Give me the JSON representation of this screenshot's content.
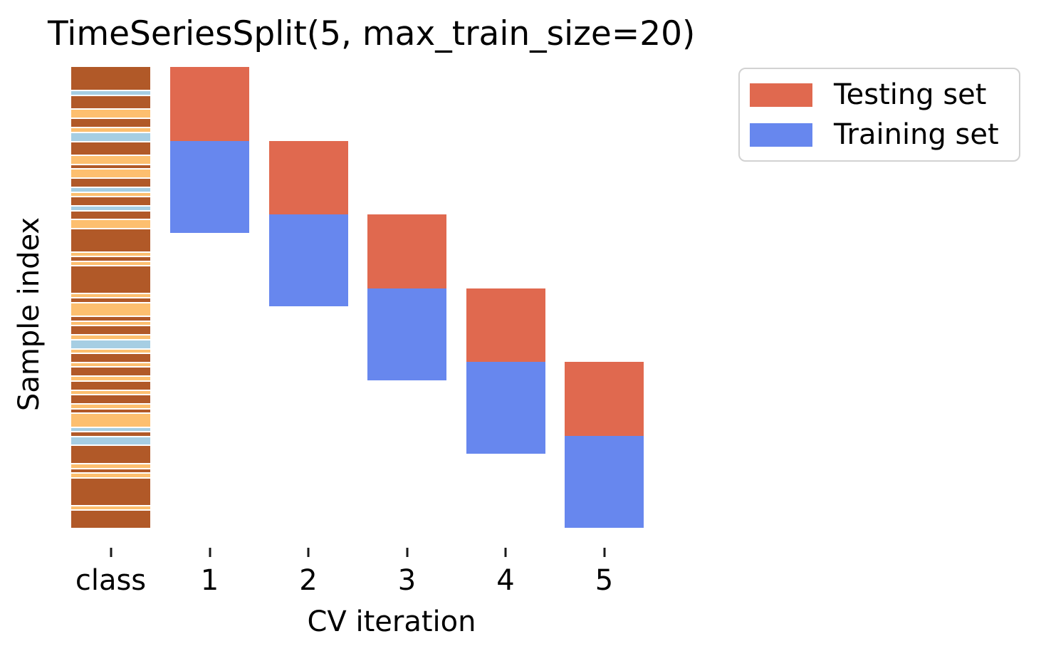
{
  "title": "TimeSeriesSplit(5, max_train_size=20)",
  "axes": {
    "x_label": "CV iteration",
    "y_label": "Sample index",
    "tick_labels": [
      "class",
      "1",
      "2",
      "3",
      "4",
      "5"
    ]
  },
  "legend": {
    "items": [
      {
        "label": "Testing set",
        "color": "#e0694f"
      },
      {
        "label": "Training set",
        "color": "#6787ee"
      }
    ]
  },
  "colors": {
    "testing": "#e0694f",
    "training": "#6787ee",
    "class_palette": {
      "0": "#a6cee3",
      "1": "#fdbf6f",
      "2": "#b15928"
    },
    "tick": "#1a1a1a",
    "legend_border": "#d2d2d2",
    "background": "#ffffff"
  },
  "chart_data": {
    "type": "cv-indices-bar",
    "title": "TimeSeriesSplit(5, max_train_size=20)",
    "xlabel": "CV iteration",
    "ylabel": "Sample index",
    "x_categories": [
      "class",
      "1",
      "2",
      "3",
      "4",
      "5"
    ],
    "legend_entries": [
      "Testing set",
      "Training set"
    ],
    "n_samples": 100,
    "n_splits": 5,
    "test_size": 16,
    "max_train_size": 20,
    "grid": false,
    "y_ticks_shown": false,
    "splits": [
      {
        "iteration": "1",
        "test": [
          0,
          16
        ],
        "train": [
          16,
          36
        ]
      },
      {
        "iteration": "2",
        "test": [
          16,
          32
        ],
        "train": [
          32,
          52
        ]
      },
      {
        "iteration": "3",
        "test": [
          32,
          48
        ],
        "train": [
          48,
          68
        ]
      },
      {
        "iteration": "4",
        "test": [
          48,
          64
        ],
        "train": [
          64,
          84
        ]
      },
      {
        "iteration": "5",
        "test": [
          64,
          80
        ],
        "train": [
          80,
          100
        ]
      }
    ],
    "class_stripes": [
      {
        "cls": "2",
        "n": 5
      },
      {
        "cls": "0",
        "n": 1
      },
      {
        "cls": "2",
        "n": 3
      },
      {
        "cls": "1",
        "n": 2
      },
      {
        "cls": "2",
        "n": 2
      },
      {
        "cls": "1",
        "n": 1
      },
      {
        "cls": "0",
        "n": 2
      },
      {
        "cls": "2",
        "n": 3
      },
      {
        "cls": "1",
        "n": 2
      },
      {
        "cls": "2",
        "n": 1
      },
      {
        "cls": "1",
        "n": 2
      },
      {
        "cls": "2",
        "n": 2
      },
      {
        "cls": "0",
        "n": 1
      },
      {
        "cls": "1",
        "n": 1
      },
      {
        "cls": "2",
        "n": 2
      },
      {
        "cls": "0",
        "n": 1
      },
      {
        "cls": "2",
        "n": 2
      },
      {
        "cls": "1",
        "n": 2
      },
      {
        "cls": "2",
        "n": 5
      },
      {
        "cls": "1",
        "n": 1
      },
      {
        "cls": "2",
        "n": 1
      },
      {
        "cls": "1",
        "n": 1
      },
      {
        "cls": "2",
        "n": 6
      },
      {
        "cls": "1",
        "n": 1
      },
      {
        "cls": "2",
        "n": 1
      },
      {
        "cls": "1",
        "n": 3
      },
      {
        "cls": "2",
        "n": 1
      },
      {
        "cls": "1",
        "n": 1
      },
      {
        "cls": "2",
        "n": 2
      },
      {
        "cls": "1",
        "n": 1
      },
      {
        "cls": "0",
        "n": 2
      },
      {
        "cls": "1",
        "n": 1
      },
      {
        "cls": "2",
        "n": 2
      },
      {
        "cls": "1",
        "n": 1
      },
      {
        "cls": "2",
        "n": 2
      },
      {
        "cls": "1",
        "n": 1
      },
      {
        "cls": "2",
        "n": 2
      },
      {
        "cls": "1",
        "n": 1
      },
      {
        "cls": "2",
        "n": 2
      },
      {
        "cls": "1",
        "n": 1
      },
      {
        "cls": "2",
        "n": 1
      },
      {
        "cls": "1",
        "n": 3
      },
      {
        "cls": "0",
        "n": 1
      },
      {
        "cls": "2",
        "n": 1
      },
      {
        "cls": "0",
        "n": 2
      },
      {
        "cls": "2",
        "n": 4
      },
      {
        "cls": "1",
        "n": 1
      },
      {
        "cls": "2",
        "n": 1
      },
      {
        "cls": "1",
        "n": 1
      },
      {
        "cls": "2",
        "n": 6
      },
      {
        "cls": "1",
        "n": 1
      },
      {
        "cls": "2",
        "n": 4
      }
    ]
  }
}
